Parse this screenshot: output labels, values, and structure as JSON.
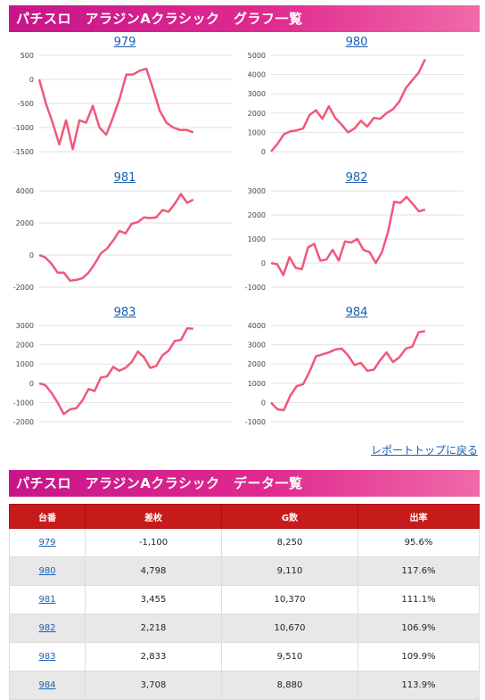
{
  "graph_section": {
    "title": "パチスロ　アラジンAクラシック　グラフ一覧"
  },
  "report_link": "レポートトップに戻る",
  "data_section": {
    "title": "パチスロ　アラジンAクラシック　データ一覧"
  },
  "table": {
    "headers": [
      "台番",
      "差枚",
      "G数",
      "出率"
    ],
    "rows": [
      {
        "machine": "979",
        "diff": "-1,100",
        "games": "8,250",
        "rate": "95.6%"
      },
      {
        "machine": "980",
        "diff": "4,798",
        "games": "9,110",
        "rate": "117.6%"
      },
      {
        "machine": "981",
        "diff": "3,455",
        "games": "10,370",
        "rate": "111.1%"
      },
      {
        "machine": "982",
        "diff": "2,218",
        "games": "10,670",
        "rate": "106.9%"
      },
      {
        "machine": "983",
        "diff": "2,833",
        "games": "9,510",
        "rate": "109.9%"
      },
      {
        "machine": "984",
        "diff": "3,708",
        "games": "8,880",
        "rate": "113.9%"
      }
    ]
  },
  "colors": {
    "line": "#f0587a",
    "header_gradient_start": "#c7168a",
    "table_header": "#c71b1b",
    "link": "#1a5fb4"
  },
  "chart_data": [
    {
      "type": "line",
      "title": "979",
      "ylim": [
        -1500,
        500
      ],
      "yticks": [
        500,
        0,
        -500,
        -1000,
        -1500
      ],
      "values": [
        0,
        -500,
        -900,
        -1350,
        -850,
        -1450,
        -850,
        -900,
        -550,
        -1000,
        -1150,
        -800,
        -400,
        100,
        100,
        180,
        220,
        -200,
        -650,
        -900,
        -1000,
        -1050,
        -1050,
        -1100
      ]
    },
    {
      "type": "line",
      "title": "980",
      "ylim": [
        0,
        5000
      ],
      "yticks": [
        5000,
        4000,
        3000,
        2000,
        1000,
        0
      ],
      "values": [
        0,
        400,
        900,
        1050,
        1100,
        1200,
        1900,
        2150,
        1700,
        2350,
        1750,
        1400,
        1000,
        1200,
        1600,
        1300,
        1750,
        1700,
        2000,
        2200,
        2600,
        3300,
        3700,
        4100,
        4798
      ]
    },
    {
      "type": "line",
      "title": "981",
      "ylim": [
        -2000,
        4000
      ],
      "yticks": [
        4000,
        2000,
        0,
        -2000
      ],
      "values": [
        0,
        -150,
        -550,
        -1100,
        -1100,
        -1600,
        -1550,
        -1450,
        -1100,
        -550,
        100,
        400,
        900,
        1500,
        1350,
        1950,
        2050,
        2350,
        2300,
        2350,
        2800,
        2700,
        3200,
        3800,
        3250,
        3455
      ]
    },
    {
      "type": "line",
      "title": "982",
      "ylim": [
        -1000,
        3000
      ],
      "yticks": [
        3000,
        2000,
        1000,
        0,
        -1000
      ],
      "values": [
        0,
        -50,
        -500,
        250,
        -200,
        -250,
        650,
        800,
        100,
        150,
        550,
        100,
        900,
        850,
        1000,
        550,
        450,
        0,
        450,
        1300,
        2550,
        2500,
        2750,
        2450,
        2150,
        2218
      ]
    },
    {
      "type": "line",
      "title": "983",
      "ylim": [
        -2000,
        3000
      ],
      "yticks": [
        3000,
        2000,
        1000,
        0,
        -1000,
        -2000
      ],
      "values": [
        0,
        -100,
        -500,
        -1000,
        -1600,
        -1350,
        -1300,
        -900,
        -300,
        -400,
        300,
        350,
        850,
        650,
        800,
        1100,
        1650,
        1350,
        800,
        900,
        1450,
        1700,
        2200,
        2250,
        2850,
        2833
      ]
    },
    {
      "type": "line",
      "title": "984",
      "ylim": [
        -1000,
        4000
      ],
      "yticks": [
        4000,
        3000,
        2000,
        1000,
        0,
        -1000
      ],
      "values": [
        0,
        -350,
        -400,
        350,
        850,
        950,
        1600,
        2400,
        2500,
        2600,
        2750,
        2800,
        2450,
        1950,
        2050,
        1650,
        1700,
        2200,
        2600,
        2100,
        2350,
        2800,
        2900,
        3650,
        3708
      ]
    }
  ]
}
